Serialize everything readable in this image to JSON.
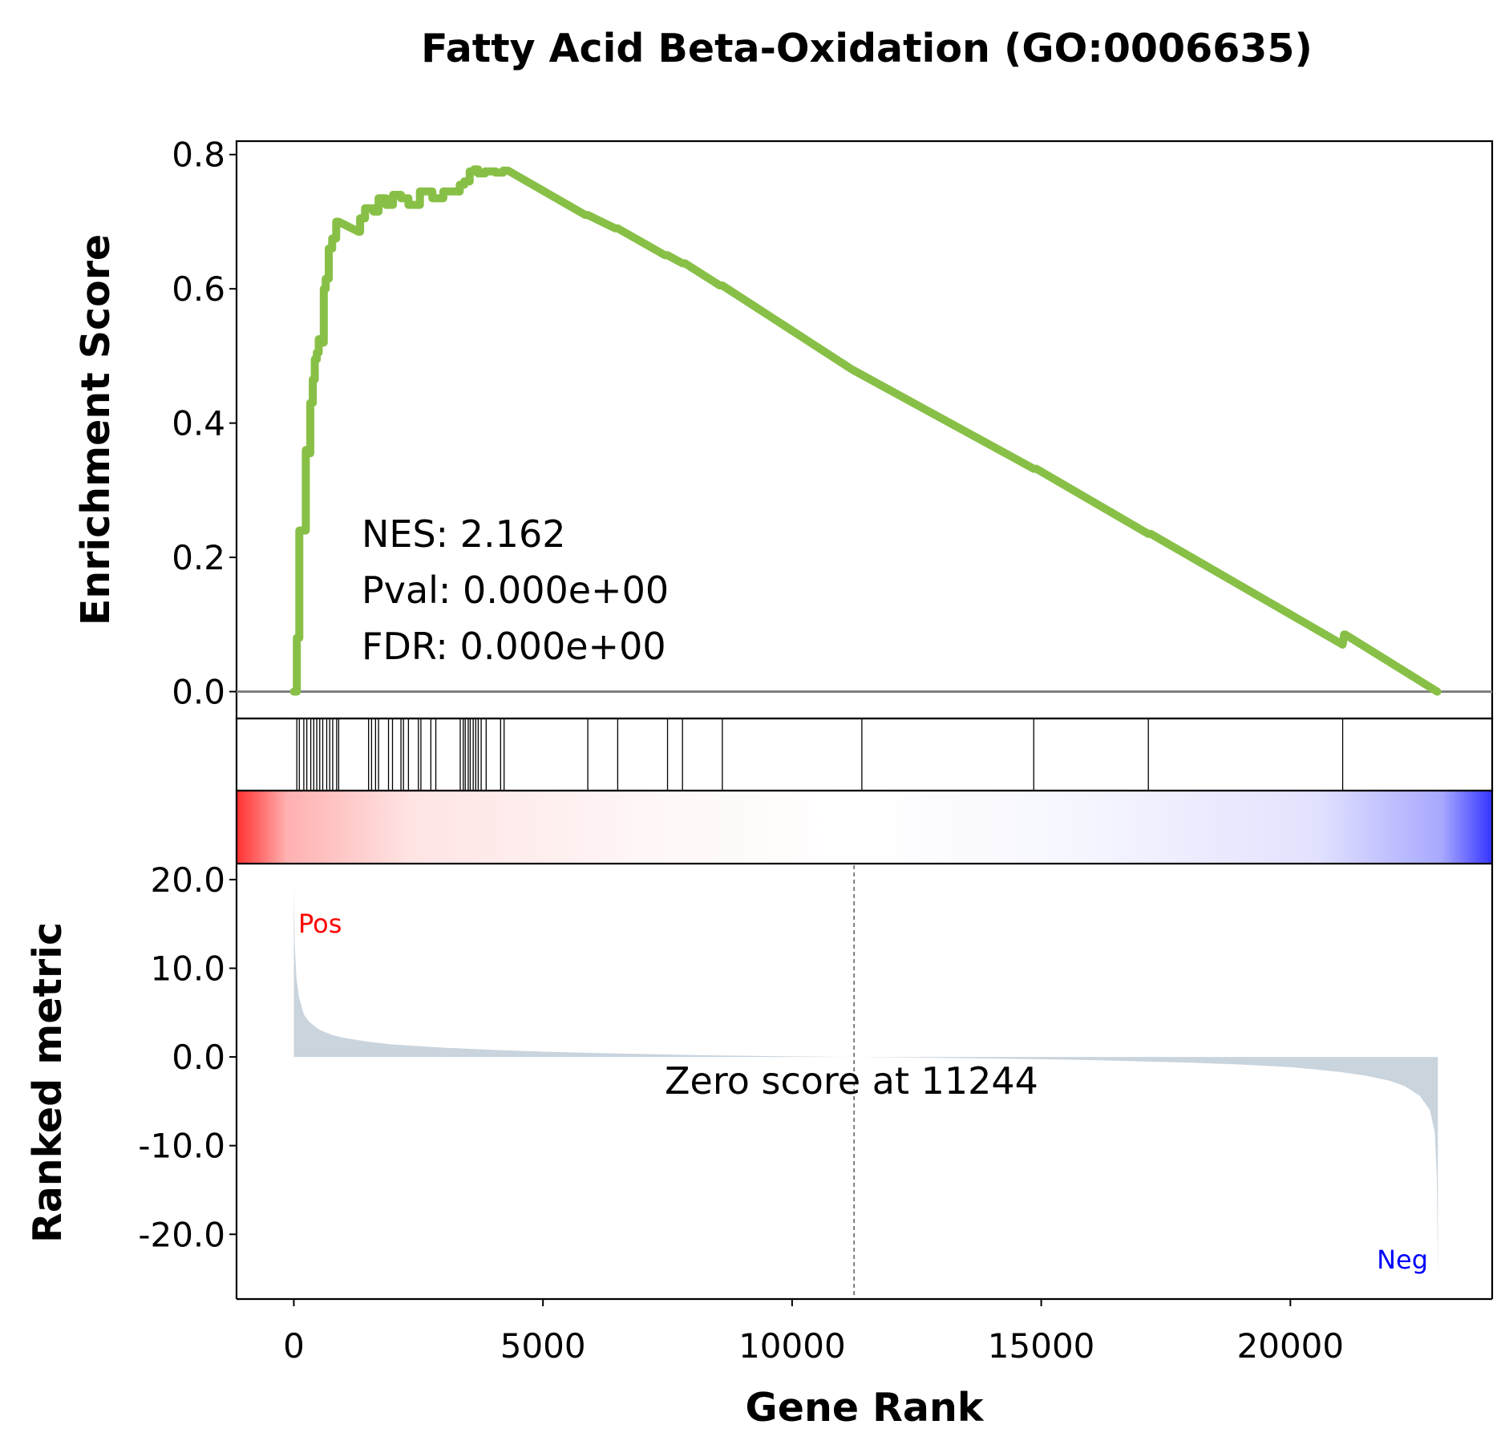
{
  "chart_data": {
    "type": "line",
    "title": "Fatty Acid Beta-Oxidation (GO:0006635)",
    "xlabel": "Gene Rank",
    "xlim": [
      -1150,
      24050
    ],
    "x_ticks": [
      {
        "value": 0,
        "label": "0"
      },
      {
        "value": 5000,
        "label": "5000"
      },
      {
        "value": 10000,
        "label": "10000"
      },
      {
        "value": 15000,
        "label": "15000"
      },
      {
        "value": 20000,
        "label": "20000"
      }
    ],
    "grid": false,
    "colors": {
      "es_line": "#88c047",
      "zero_line": "#808080",
      "metric_fill": "#c9d4dd",
      "pos_label": "#ff0000",
      "neg_label": "#0000ff",
      "gradient_pos": "#ff0000",
      "gradient_neg": "#0000ff"
    },
    "enrichment": {
      "ylabel": "Enrichment Score",
      "ylim": [
        -0.04,
        0.82
      ],
      "y_ticks": [
        {
          "value": 0.0,
          "label": "0.0"
        },
        {
          "value": 0.2,
          "label": "0.2"
        },
        {
          "value": 0.4,
          "label": "0.4"
        },
        {
          "value": 0.6,
          "label": "0.6"
        },
        {
          "value": 0.8,
          "label": "0.8"
        }
      ],
      "series": [
        {
          "x": [
            0,
            60,
            60,
            110,
            110,
            190,
            240,
            240,
            290,
            290,
            330,
            330,
            380,
            380,
            420,
            420,
            460,
            460,
            500,
            500,
            550,
            550,
            600,
            600,
            640,
            640,
            700,
            700,
            770,
            770,
            850,
            850,
            900,
            1300,
            1330,
            1330,
            1430,
            1430,
            1600,
            1600,
            1700,
            1700,
            1850,
            1850,
            1990,
            1990,
            2150,
            2150,
            2300,
            2300,
            2530,
            2530,
            2780,
            2780,
            3000,
            3000,
            3330,
            3330,
            3420,
            3420,
            3530,
            3530,
            3620,
            3620,
            3700,
            3700,
            3840,
            3840,
            4050,
            4050,
            4200,
            4200,
            4300,
            5850,
            5900,
            6450,
            6500,
            7450,
            7500,
            7800,
            7850,
            8550,
            8600,
            11200,
            14850,
            14900,
            17150,
            17200,
            21050,
            21080,
            21100,
            22950
          ],
          "values": [
            0.0,
            0.0,
            0.08,
            0.08,
            0.24,
            0.24,
            0.24,
            0.36,
            0.36,
            0.355,
            0.355,
            0.43,
            0.43,
            0.465,
            0.465,
            0.495,
            0.495,
            0.505,
            0.505,
            0.525,
            0.525,
            0.52,
            0.52,
            0.6,
            0.6,
            0.615,
            0.615,
            0.66,
            0.66,
            0.675,
            0.675,
            0.7,
            0.7,
            0.685,
            0.685,
            0.705,
            0.705,
            0.72,
            0.72,
            0.715,
            0.715,
            0.735,
            0.735,
            0.725,
            0.725,
            0.74,
            0.74,
            0.735,
            0.735,
            0.725,
            0.725,
            0.745,
            0.745,
            0.735,
            0.735,
            0.745,
            0.745,
            0.755,
            0.755,
            0.76,
            0.76,
            0.775,
            0.775,
            0.778,
            0.778,
            0.772,
            0.772,
            0.775,
            0.775,
            0.773,
            0.773,
            0.776,
            0.776,
            0.71,
            0.71,
            0.69,
            0.69,
            0.65,
            0.65,
            0.638,
            0.638,
            0.605,
            0.605,
            0.48,
            0.332,
            0.332,
            0.235,
            0.235,
            0.07,
            0.085,
            0.085,
            0.0
          ]
        }
      ],
      "stats": {
        "nes": "NES: 2.162",
        "pval": "Pval: 0.000e+00",
        "fdr": "FDR: 0.000e+00"
      }
    },
    "hits": [
      60,
      110,
      200,
      260,
      340,
      400,
      460,
      520,
      580,
      660,
      720,
      780,
      860,
      900,
      1500,
      1560,
      1640,
      1700,
      1900,
      1980,
      2150,
      2200,
      2300,
      2500,
      2550,
      2750,
      2850,
      3340,
      3400,
      3440,
      3500,
      3540,
      3600,
      3650,
      3700,
      3760,
      3860,
      4150,
      4220,
      5900,
      6500,
      7500,
      7800,
      8600,
      11400,
      14850,
      17150,
      21050
    ],
    "ranked_metric": {
      "ylabel": "Ranked metric",
      "ylim": [
        -27.3,
        21.8
      ],
      "y_ticks": [
        {
          "value": 20.0,
          "label": "20.0"
        },
        {
          "value": 10.0,
          "label": "10.0"
        },
        {
          "value": 0.0,
          "label": "0.0"
        },
        {
          "value": -10.0,
          "label": "-10.0"
        },
        {
          "value": -20.0,
          "label": "-20.0"
        }
      ],
      "x": [
        0,
        5,
        20,
        50,
        100,
        200,
        300,
        500,
        750,
        1000,
        1500,
        2000,
        3000,
        4000,
        5000,
        6000,
        7000,
        8000,
        9000,
        10000,
        11244,
        13000,
        15000,
        16000,
        17000,
        18000,
        19000,
        20000,
        20500,
        21000,
        21500,
        22000,
        22300,
        22600,
        22800,
        22900,
        22940,
        22960
      ],
      "values": [
        20.0,
        17.0,
        12.5,
        9.0,
        6.8,
        4.8,
        4.0,
        3.1,
        2.5,
        2.15,
        1.7,
        1.4,
        1.05,
        0.8,
        0.6,
        0.45,
        0.33,
        0.22,
        0.13,
        0.06,
        0.0,
        -0.1,
        -0.25,
        -0.35,
        -0.5,
        -0.65,
        -0.85,
        -1.15,
        -1.4,
        -1.7,
        -2.1,
        -2.7,
        -3.3,
        -4.4,
        -6.0,
        -8.5,
        -13.5,
        -25.0
      ],
      "zero_score": 11244,
      "zero_label": "Zero score at 11244",
      "pos_label": "Pos",
      "neg_label": "Neg"
    }
  }
}
